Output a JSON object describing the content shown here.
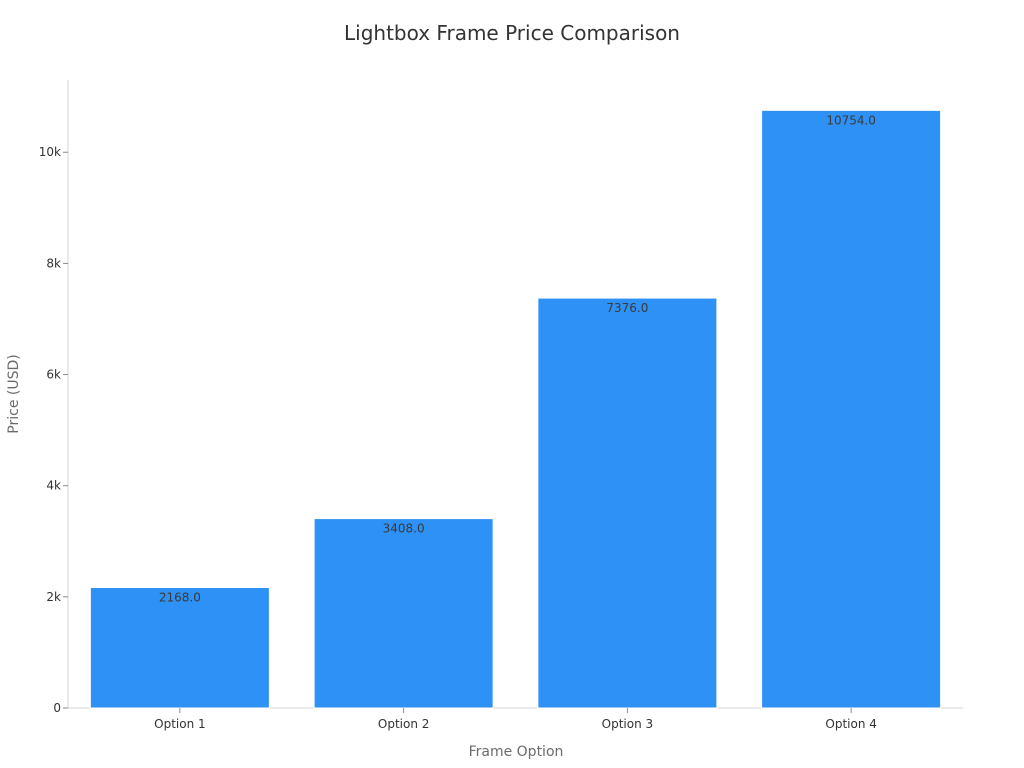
{
  "chart_data": {
    "type": "bar",
    "title": "Lightbox Frame Price Comparison",
    "xlabel": "Frame Option",
    "ylabel": "Price (USD)",
    "categories": [
      "Option 1",
      "Option 2",
      "Option 3",
      "Option 4"
    ],
    "values": [
      2168.0,
      3408.0,
      7376.0,
      10754.0
    ],
    "value_labels": [
      "2168.0",
      "3408.0",
      "7376.0",
      "10754.0"
    ],
    "ylim": [
      0,
      11300
    ],
    "yticks": [
      0,
      2000,
      4000,
      6000,
      8000,
      10000
    ],
    "ytick_labels": [
      "0",
      "2k",
      "4k",
      "6k",
      "8k",
      "10k"
    ],
    "grid": false,
    "legend": "none",
    "colors": {
      "bar": "#2e91f5",
      "bar_edge": "#ffffff"
    }
  }
}
